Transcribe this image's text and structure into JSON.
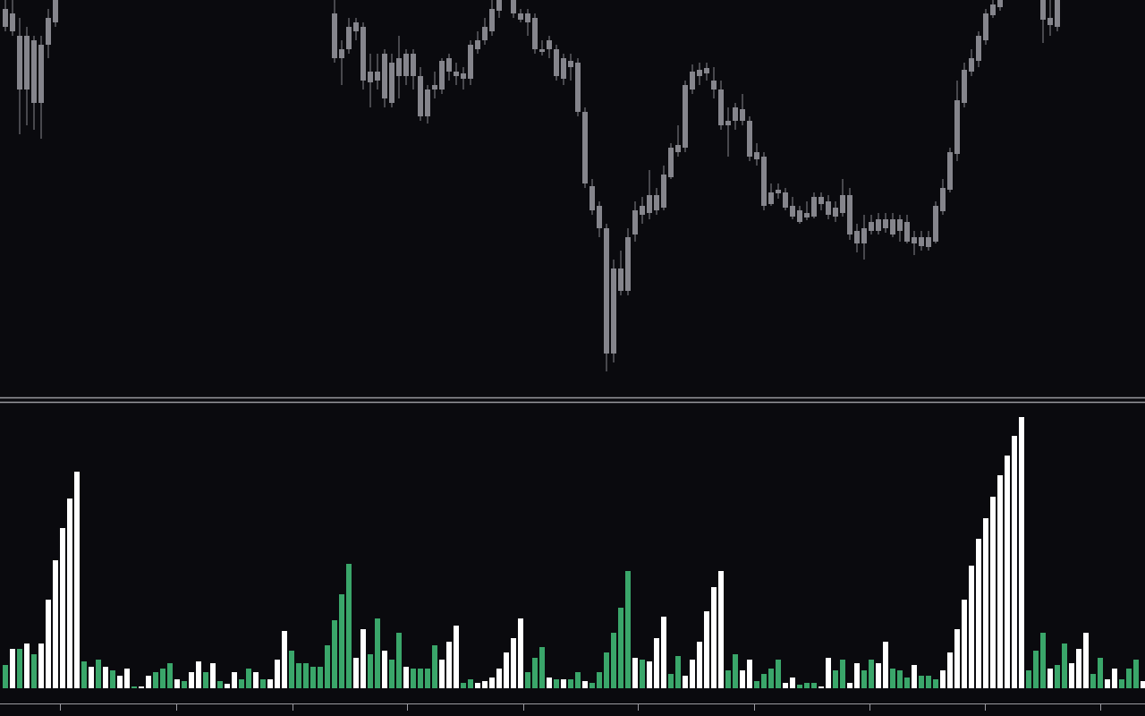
{
  "chart_data": [
    {
      "type": "candlestick",
      "color": "#85858c",
      "ylim": [
        0,
        440
      ],
      "ohlc": [
        [
          410,
          440,
          405,
          430
        ],
        [
          405,
          440,
          400,
          425
        ],
        [
          340,
          420,
          290,
          400
        ],
        [
          340,
          410,
          300,
          400
        ],
        [
          325,
          400,
          295,
          395
        ],
        [
          325,
          400,
          285,
          390
        ],
        [
          390,
          430,
          375,
          420
        ],
        [
          415,
          440,
          410,
          440
        ],
        null,
        null,
        null,
        null,
        null,
        null,
        null,
        null,
        null,
        null,
        null,
        null,
        null,
        null,
        null,
        null,
        null,
        null,
        null,
        null,
        null,
        null,
        null,
        null,
        null,
        null,
        null,
        null,
        null,
        null,
        null,
        null,
        null,
        null,
        null,
        null,
        null,
        null,
        [
          375,
          440,
          370,
          425
        ],
        [
          375,
          395,
          345,
          385
        ],
        [
          385,
          420,
          380,
          410
        ],
        [
          405,
          420,
          395,
          415
        ],
        [
          350,
          415,
          340,
          410
        ],
        [
          348,
          380,
          320,
          360
        ],
        [
          350,
          380,
          340,
          360
        ],
        [
          330,
          385,
          320,
          380
        ],
        [
          325,
          380,
          320,
          370
        ],
        [
          355,
          400,
          330,
          375
        ],
        [
          355,
          385,
          345,
          380
        ],
        [
          355,
          385,
          340,
          380
        ],
        [
          310,
          365,
          305,
          355
        ],
        [
          310,
          345,
          302,
          340
        ],
        [
          340,
          360,
          330,
          345
        ],
        [
          340,
          375,
          335,
          372
        ],
        [
          360,
          380,
          350,
          375
        ],
        [
          355,
          370,
          345,
          360
        ],
        [
          352,
          365,
          340,
          358
        ],
        [
          352,
          395,
          345,
          390
        ],
        [
          385,
          405,
          380,
          395
        ],
        [
          395,
          420,
          390,
          410
        ],
        [
          405,
          440,
          400,
          430
        ],
        [
          428,
          440,
          420,
          440
        ],
        null,
        [
          425,
          440,
          420,
          440
        ],
        [
          418,
          430,
          415,
          425
        ],
        [
          415,
          430,
          400,
          425
        ],
        [
          385,
          425,
          380,
          420
        ],
        [
          382,
          395,
          378,
          385
        ],
        [
          385,
          400,
          375,
          395
        ],
        [
          355,
          390,
          350,
          385
        ],
        [
          352,
          380,
          345,
          375
        ],
        [
          365,
          380,
          350,
          372
        ],
        [
          315,
          375,
          310,
          370
        ],
        [
          235,
          320,
          230,
          315
        ],
        [
          205,
          240,
          200,
          232
        ],
        [
          185,
          215,
          175,
          210
        ],
        [
          45,
          190,
          25,
          185
        ],
        [
          45,
          150,
          35,
          140
        ],
        [
          115,
          160,
          110,
          140
        ],
        [
          115,
          185,
          110,
          175
        ],
        [
          178,
          215,
          170,
          205
        ],
        [
          200,
          220,
          190,
          210
        ],
        [
          202,
          250,
          195,
          222
        ],
        [
          205,
          230,
          200,
          222
        ],
        [
          208,
          255,
          205,
          245
        ],
        [
          242,
          280,
          240,
          275
        ],
        [
          270,
          300,
          265,
          278
        ],
        [
          275,
          350,
          270,
          345
        ],
        [
          340,
          368,
          335,
          360
        ],
        [
          355,
          370,
          345,
          362
        ],
        [
          358,
          370,
          350,
          364
        ],
        [
          340,
          365,
          330,
          350
        ],
        [
          300,
          350,
          295,
          340
        ],
        [
          300,
          320,
          265,
          305
        ],
        [
          305,
          325,
          295,
          320
        ],
        [
          305,
          335,
          300,
          318
        ],
        [
          265,
          310,
          260,
          305
        ],
        [
          262,
          280,
          255,
          270
        ],
        [
          210,
          270,
          205,
          265
        ],
        [
          212,
          235,
          210,
          225
        ],
        [
          224,
          235,
          218,
          228
        ],
        [
          208,
          230,
          205,
          225
        ],
        [
          198,
          220,
          195,
          210
        ],
        [
          192,
          210,
          190,
          205
        ],
        [
          197,
          215,
          194,
          202
        ],
        [
          198,
          225,
          196,
          220
        ],
        [
          212,
          225,
          205,
          220
        ],
        [
          200,
          222,
          195,
          215
        ],
        [
          198,
          215,
          192,
          208
        ],
        [
          202,
          240,
          198,
          222
        ],
        [
          178,
          230,
          172,
          222
        ],
        [
          168,
          190,
          158,
          182
        ],
        [
          168,
          200,
          150,
          185
        ],
        [
          182,
          200,
          178,
          192
        ],
        [
          182,
          202,
          178,
          195
        ],
        [
          185,
          202,
          180,
          195
        ],
        [
          178,
          202,
          175,
          195
        ],
        [
          182,
          200,
          170,
          195
        ],
        [
          170,
          200,
          168,
          192
        ],
        [
          168,
          182,
          155,
          175
        ],
        [
          165,
          182,
          160,
          175
        ],
        [
          164,
          182,
          160,
          175
        ],
        [
          170,
          215,
          168,
          210
        ],
        [
          204,
          240,
          200,
          230
        ],
        [
          228,
          275,
          225,
          270
        ],
        [
          268,
          350,
          260,
          328
        ],
        [
          325,
          370,
          320,
          362
        ],
        [
          360,
          385,
          355,
          375
        ],
        [
          372,
          405,
          365,
          400
        ],
        [
          395,
          430,
          390,
          425
        ],
        [
          423,
          440,
          420,
          435
        ],
        [
          432,
          440,
          428,
          440
        ],
        null,
        null,
        null,
        null,
        null,
        [
          418,
          440,
          392,
          440
        ],
        [
          412,
          440,
          400,
          420
        ],
        [
          410,
          440,
          405,
          440
        ],
        null,
        null,
        null,
        null,
        null,
        null,
        null,
        null,
        null,
        null
      ]
    },
    {
      "type": "bar",
      "ylim": [
        0,
        320
      ],
      "values": [
        26,
        44,
        44,
        50,
        38,
        50,
        99,
        143,
        179,
        212,
        242,
        30,
        24,
        32,
        24,
        20,
        14,
        22,
        2,
        2,
        14,
        18,
        22,
        28,
        10,
        8,
        18,
        30,
        18,
        28,
        8,
        5,
        18,
        10,
        22,
        18,
        10,
        10,
        32,
        64,
        42,
        28,
        28,
        24,
        24,
        48,
        76,
        105,
        139,
        34,
        66,
        38,
        78,
        42,
        32,
        62,
        24,
        22,
        22,
        22,
        48,
        32,
        52,
        70,
        6,
        10,
        6,
        8,
        12,
        22,
        40,
        56,
        78,
        18,
        34,
        46,
        12,
        10,
        10,
        10,
        18,
        8,
        6,
        18,
        40,
        62,
        90,
        131,
        34,
        32,
        30,
        56,
        80,
        16,
        36,
        14,
        32,
        52,
        86,
        113,
        131,
        20,
        38,
        20,
        32,
        8,
        16,
        22,
        32,
        6,
        12,
        4,
        6,
        6,
        2,
        34,
        20,
        32,
        6,
        28,
        20,
        32,
        28,
        52,
        22,
        20,
        12,
        26,
        14,
        14,
        10,
        20,
        40,
        66,
        99,
        137,
        167,
        190,
        214,
        238,
        260,
        282,
        303,
        20,
        42,
        62,
        22,
        26,
        50,
        28,
        44,
        62,
        16,
        34,
        10,
        22,
        10,
        22,
        32,
        8
      ],
      "colors": [
        "#3aa66a",
        "#ffffff",
        "#3aa66a",
        "#ffffff",
        "#3aa66a",
        "#ffffff",
        "#ffffff",
        "#ffffff",
        "#ffffff",
        "#ffffff",
        "#ffffff",
        "#3aa66a",
        "#ffffff",
        "#3aa66a",
        "#ffffff",
        "#3aa66a",
        "#ffffff",
        "#ffffff",
        "#3aa66a",
        "#ffffff",
        "#ffffff",
        "#3aa66a",
        "#3aa66a",
        "#3aa66a",
        "#ffffff",
        "#3aa66a",
        "#ffffff",
        "#ffffff",
        "#3aa66a",
        "#ffffff",
        "#3aa66a",
        "#ffffff",
        "#ffffff",
        "#3aa66a",
        "#3aa66a",
        "#ffffff",
        "#3aa66a",
        "#ffffff",
        "#ffffff",
        "#ffffff",
        "#3aa66a",
        "#3aa66a",
        "#3aa66a",
        "#3aa66a",
        "#3aa66a",
        "#3aa66a",
        "#3aa66a",
        "#3aa66a",
        "#3aa66a",
        "#ffffff",
        "#ffffff",
        "#3aa66a",
        "#3aa66a",
        "#ffffff",
        "#3aa66a",
        "#3aa66a",
        "#ffffff",
        "#3aa66a",
        "#3aa66a",
        "#3aa66a",
        "#3aa66a",
        "#ffffff",
        "#ffffff",
        "#ffffff",
        "#3aa66a",
        "#3aa66a",
        "#ffffff",
        "#ffffff",
        "#ffffff",
        "#ffffff",
        "#ffffff",
        "#ffffff",
        "#ffffff",
        "#3aa66a",
        "#3aa66a",
        "#3aa66a",
        "#ffffff",
        "#3aa66a",
        "#ffffff",
        "#3aa66a",
        "#3aa66a",
        "#ffffff",
        "#3aa66a",
        "#3aa66a",
        "#3aa66a",
        "#3aa66a",
        "#3aa66a",
        "#3aa66a",
        "#ffffff",
        "#3aa66a",
        "#ffffff",
        "#ffffff",
        "#ffffff",
        "#3aa66a",
        "#3aa66a",
        "#ffffff",
        "#ffffff",
        "#ffffff",
        "#ffffff",
        "#ffffff",
        "#ffffff",
        "#3aa66a",
        "#3aa66a",
        "#ffffff",
        "#ffffff",
        "#3aa66a",
        "#3aa66a",
        "#3aa66a",
        "#3aa66a",
        "#ffffff",
        "#ffffff",
        "#3aa66a",
        "#3aa66a",
        "#3aa66a",
        "#ffffff",
        "#ffffff",
        "#3aa66a",
        "#3aa66a",
        "#ffffff",
        "#ffffff",
        "#3aa66a",
        "#3aa66a",
        "#ffffff",
        "#ffffff",
        "#3aa66a",
        "#3aa66a",
        "#3aa66a",
        "#ffffff",
        "#3aa66a",
        "#3aa66a",
        "#3aa66a",
        "#ffffff",
        "#ffffff",
        "#ffffff",
        "#ffffff",
        "#ffffff",
        "#ffffff",
        "#ffffff",
        "#ffffff",
        "#ffffff",
        "#ffffff",
        "#ffffff",
        "#ffffff",
        "#3aa66a",
        "#3aa66a",
        "#3aa66a",
        "#ffffff",
        "#3aa66a",
        "#3aa66a",
        "#ffffff",
        "#ffffff",
        "#ffffff",
        "#3aa66a",
        "#3aa66a",
        "#ffffff",
        "#ffffff",
        "#3aa66a",
        "#3aa66a",
        "#3aa66a",
        "#ffffff"
      ]
    }
  ]
}
